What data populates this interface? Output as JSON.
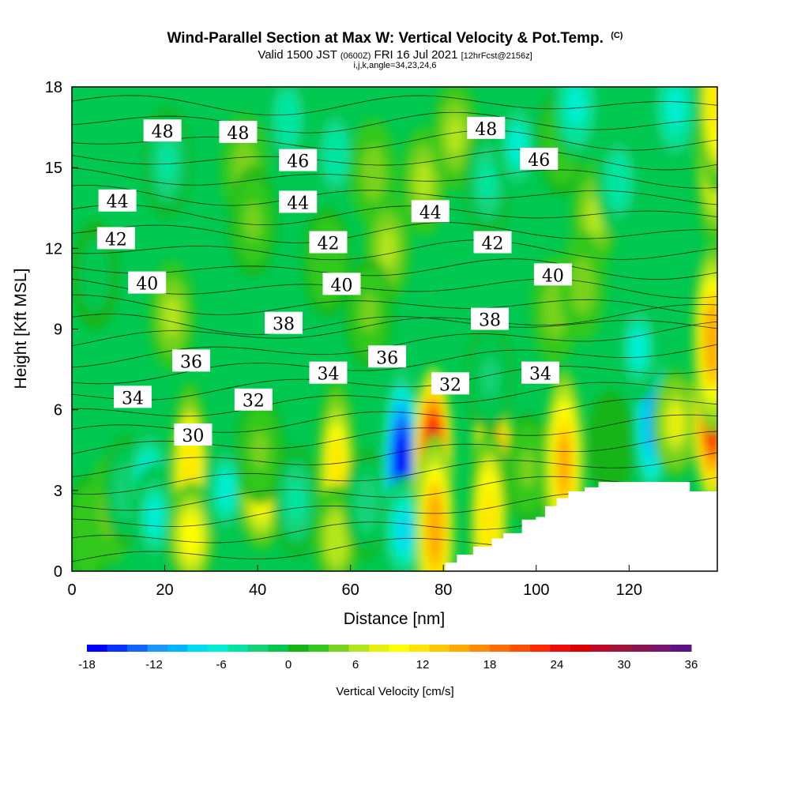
{
  "chart_data": {
    "type": "heatmap",
    "title": "Wind-Parallel Section at Max W: Vertical Velocity & Pot.Temp.",
    "title_mark": "(C)",
    "subtitle": {
      "valid": "Valid 1500 JST",
      "utc": "(0600Z)",
      "date": "FRI 16 Jul 2021",
      "forecast": "[12hrFcst@2156z]"
    },
    "params": "i,j,k,angle=34,23,24,6",
    "xlabel": "Distance [nm]",
    "ylabel": "Height [Kft MSL]",
    "xlim": [
      0,
      139
    ],
    "ylim": [
      0,
      18
    ],
    "x_ticks": [
      "0",
      "20",
      "40",
      "60",
      "80",
      "100",
      "120"
    ],
    "y_ticks": [
      "0",
      "3",
      "6",
      "9",
      "12",
      "15",
      "18"
    ],
    "colorbar": {
      "label": "Vertical Velocity [cm/s]",
      "ticks": [
        "-18",
        "-12",
        "-6",
        "0",
        "6",
        "12",
        "18",
        "24",
        "30",
        "36"
      ],
      "colors": [
        "#0000ff",
        "#0a32ff",
        "#1464ff",
        "#1e96ff",
        "#00b4ff",
        "#00dcf0",
        "#00eed4",
        "#00e6a0",
        "#14d278",
        "#00c850",
        "#14b414",
        "#32c81e",
        "#78d21e",
        "#b4e61e",
        "#e6f00a",
        "#ffff00",
        "#ffe600",
        "#ffc800",
        "#ffaa00",
        "#ff8c00",
        "#ff6e00",
        "#ff5000",
        "#ff2800",
        "#f00a0a",
        "#dc0000",
        "#be0a28",
        "#a0143c",
        "#8c1450",
        "#78146e",
        "#5a1482"
      ]
    },
    "theta_labels": [
      {
        "text": "48",
        "x": 19.5,
        "y": 16.35
      },
      {
        "text": "48",
        "x": 35.8,
        "y": 16.3
      },
      {
        "text": "48",
        "x": 89.2,
        "y": 16.45
      },
      {
        "text": "46",
        "x": 48.7,
        "y": 15.25
      },
      {
        "text": "46",
        "x": 100.6,
        "y": 15.3
      },
      {
        "text": "44",
        "x": 9.8,
        "y": 13.75
      },
      {
        "text": "44",
        "x": 48.7,
        "y": 13.7
      },
      {
        "text": "44",
        "x": 77.2,
        "y": 13.35
      },
      {
        "text": "42",
        "x": 9.5,
        "y": 12.35
      },
      {
        "text": "42",
        "x": 55.2,
        "y": 12.2
      },
      {
        "text": "42",
        "x": 90.6,
        "y": 12.2
      },
      {
        "text": "40",
        "x": 16.2,
        "y": 10.7
      },
      {
        "text": "40",
        "x": 58.1,
        "y": 10.65
      },
      {
        "text": "40",
        "x": 103.6,
        "y": 11.0
      },
      {
        "text": "38",
        "x": 45.6,
        "y": 9.2
      },
      {
        "text": "38",
        "x": 90.0,
        "y": 9.35
      },
      {
        "text": "36",
        "x": 25.7,
        "y": 7.8
      },
      {
        "text": "36",
        "x": 67.9,
        "y": 7.95
      },
      {
        "text": "34",
        "x": 13.1,
        "y": 6.45
      },
      {
        "text": "34",
        "x": 55.2,
        "y": 7.35
      },
      {
        "text": "34",
        "x": 100.9,
        "y": 7.35
      },
      {
        "text": "32",
        "x": 39.1,
        "y": 6.35
      },
      {
        "text": "32",
        "x": 81.5,
        "y": 6.95
      },
      {
        "text": "30",
        "x": 26.1,
        "y": 5.05
      }
    ],
    "vertical_velocity_cells": [
      {
        "x": 3.5,
        "y": 1.5,
        "w": 3
      },
      {
        "x": 8.5,
        "y": 2.3,
        "w": 5
      },
      {
        "x": 11.7,
        "y": 3.0,
        "w": -3
      },
      {
        "x": 16.6,
        "y": 3.3,
        "w": -9
      },
      {
        "x": 17.8,
        "y": 2.0,
        "w": -6
      },
      {
        "x": 25.4,
        "y": 3.6,
        "w": 12
      },
      {
        "x": 25.7,
        "y": 1.3,
        "w": 9
      },
      {
        "x": 33.2,
        "y": 3.0,
        "w": -6
      },
      {
        "x": 40.8,
        "y": 2.8,
        "w": 9
      },
      {
        "x": 40.5,
        "y": 4.5,
        "w": 4
      },
      {
        "x": 48.3,
        "y": 2.6,
        "w": -4
      },
      {
        "x": 57.0,
        "y": 3.7,
        "w": 11
      },
      {
        "x": 57.0,
        "y": 1.2,
        "w": 7
      },
      {
        "x": 63.5,
        "y": 2.5,
        "w": -3
      },
      {
        "x": 71.0,
        "y": 4.0,
        "w": -18
      },
      {
        "x": 71.6,
        "y": 1.5,
        "w": -9
      },
      {
        "x": 77.8,
        "y": 4.1,
        "w": 28
      },
      {
        "x": 78.2,
        "y": 1.6,
        "w": 16
      },
      {
        "x": 90.5,
        "y": 3.9,
        "w": 21
      },
      {
        "x": 89.8,
        "y": 1.9,
        "w": 12
      },
      {
        "x": 98.2,
        "y": 3.8,
        "w": 4
      },
      {
        "x": 106.0,
        "y": 4.0,
        "w": 15
      },
      {
        "x": 116.0,
        "y": 4.7,
        "w": 1
      },
      {
        "x": 124.8,
        "y": 5.7,
        "w": -10
      },
      {
        "x": 122.0,
        "y": 8.3,
        "w": -6
      },
      {
        "x": 130.0,
        "y": 5.5,
        "w": 8
      },
      {
        "x": 138.0,
        "y": 6.0,
        "w": 26
      },
      {
        "x": 138.0,
        "y": 8.6,
        "w": 16
      },
      {
        "x": 138.5,
        "y": 15.5,
        "w": 10
      },
      {
        "x": 139.0,
        "y": 17.5,
        "w": 12
      },
      {
        "x": 20.5,
        "y": 15.2,
        "w": -4
      },
      {
        "x": 37.2,
        "y": 15.0,
        "w": 5
      },
      {
        "x": 39.0,
        "y": 13.0,
        "w": 4
      },
      {
        "x": 46.5,
        "y": 16.8,
        "w": -5
      },
      {
        "x": 56.8,
        "y": 15.5,
        "w": -5
      },
      {
        "x": 65.0,
        "y": 14.8,
        "w": 5
      },
      {
        "x": 68.0,
        "y": 12.0,
        "w": 6
      },
      {
        "x": 75.8,
        "y": 14.5,
        "w": 6
      },
      {
        "x": 82.6,
        "y": 16.2,
        "w": 6
      },
      {
        "x": 89.5,
        "y": 14.5,
        "w": -4
      },
      {
        "x": 96.0,
        "y": 15.8,
        "w": -6
      },
      {
        "x": 105.5,
        "y": 16.0,
        "w": 3
      },
      {
        "x": 108.6,
        "y": 17.3,
        "w": -7
      },
      {
        "x": 112.6,
        "y": 13.2,
        "w": 6
      },
      {
        "x": 117.7,
        "y": 14.5,
        "w": -5
      },
      {
        "x": 130.0,
        "y": 17.2,
        "w": -7
      },
      {
        "x": 21.6,
        "y": 9.5,
        "w": 6
      },
      {
        "x": 64.0,
        "y": 9.6,
        "w": 4
      },
      {
        "x": 104.0,
        "y": 9.7,
        "w": 5
      },
      {
        "x": 110.0,
        "y": 10.6,
        "w": 5
      },
      {
        "x": 5.0,
        "y": 11.0,
        "w": -1
      },
      {
        "x": 90.0,
        "y": 7.2,
        "w": -2
      },
      {
        "x": 55.0,
        "y": 11.5,
        "w": 3
      }
    ],
    "terrain_nm": [
      {
        "x": 79.0,
        "h": 0.0
      },
      {
        "x": 80.5,
        "h": 0.3
      },
      {
        "x": 83.0,
        "h": 0.6
      },
      {
        "x": 86.5,
        "h": 0.9
      },
      {
        "x": 90.5,
        "h": 1.2
      },
      {
        "x": 93.0,
        "h": 1.4
      },
      {
        "x": 97.0,
        "h": 1.9
      },
      {
        "x": 100.0,
        "h": 2.0
      },
      {
        "x": 102.0,
        "h": 2.4
      },
      {
        "x": 104.5,
        "h": 2.7
      },
      {
        "x": 107.0,
        "h": 2.95
      },
      {
        "x": 110.5,
        "h": 3.1
      },
      {
        "x": 113.5,
        "h": 3.3
      },
      {
        "x": 133.0,
        "h": 3.3
      },
      {
        "x": 133.0,
        "h": 2.95
      },
      {
        "x": 139.0,
        "h": 2.95
      }
    ]
  }
}
